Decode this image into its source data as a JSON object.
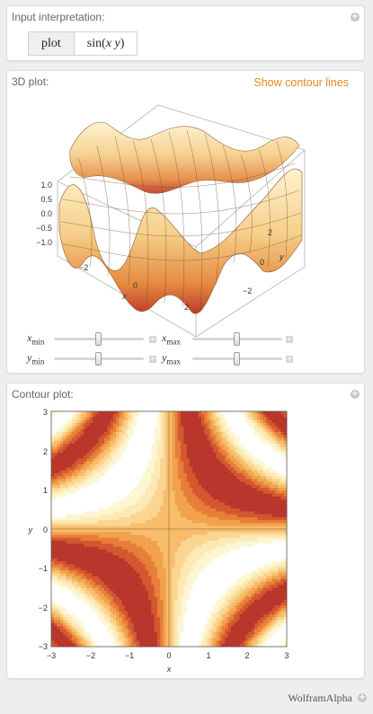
{
  "input_pod": {
    "title": "Input interpretation:",
    "cells": [
      "plot",
      "sin(x y)"
    ]
  },
  "plot3d_pod": {
    "title": "3D plot:",
    "contour_link": "Show contour lines",
    "z_ticks": [
      "1.0",
      "0.5",
      "0.0",
      "−0.5",
      "−1.0"
    ],
    "x_ticks": [
      "−2",
      "0",
      "2"
    ],
    "y_ticks": [
      "2",
      "0",
      "−2"
    ],
    "x_label": "x",
    "y_label": "y",
    "sliders": [
      {
        "var": "x",
        "sub": "min",
        "level": 0.5
      },
      {
        "var": "x",
        "sub": "max",
        "level": 0.5
      },
      {
        "var": "y",
        "sub": "min",
        "level": 0.5
      },
      {
        "var": "y",
        "sub": "max",
        "level": 0.5
      }
    ]
  },
  "contour_pod": {
    "title": "Contour plot:",
    "x_label": "x",
    "y_label": "y"
  },
  "footer": {
    "brand": "WolframAlpha"
  },
  "colors": {
    "accent": "#e38a1f",
    "contour_levels": [
      "#ffffff",
      "#fdf6d2",
      "#fce9b4",
      "#fbd591",
      "#f8bd6c",
      "#f2a24c",
      "#e77e3a",
      "#d4582f",
      "#b8362b"
    ]
  },
  "chart_data": {
    "type": "heatmap",
    "function": "sin(x y)",
    "x_range": [
      -3,
      3
    ],
    "y_range": [
      -3,
      3
    ],
    "z_range": [
      -1,
      1
    ],
    "x_ticks": [
      "−3",
      "−2",
      "−1",
      "0",
      "1",
      "2",
      "3"
    ],
    "y_ticks": [
      "3",
      "2",
      "1",
      "0",
      "−1",
      "−2",
      "−3"
    ],
    "grid": false
  }
}
